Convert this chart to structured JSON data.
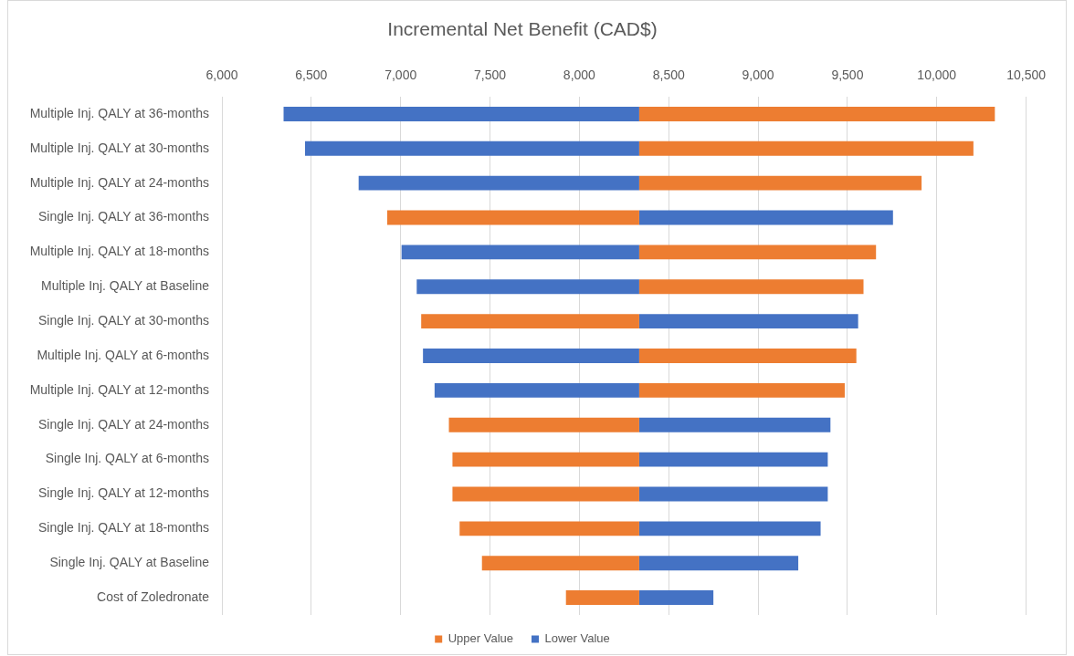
{
  "chart_data": {
    "type": "bar",
    "orientation": "horizontal",
    "title": "Incremental Net Benefit (CAD$)",
    "categories": [
      "Multiple Inj. QALY at 36-months",
      "Multiple Inj. QALY at 30-months",
      "Multiple Inj. QALY at 24-months",
      "Single Inj. QALY at 36-months",
      "Multiple Inj. QALY at 18-months",
      "Multiple Inj. QALY at Baseline",
      "Single Inj. QALY at 30-months",
      "Multiple Inj. QALY at 6-months",
      "Multiple Inj. QALY at 12-months",
      "Single Inj. QALY at 24-months",
      "Single Inj. QALY at 6-months",
      "Single Inj. QALY at 12-months",
      "Single Inj. QALY at 18-months",
      "Single Inj. QALY at Baseline",
      "Cost of Zoledronate"
    ],
    "series": [
      {
        "name": "Upper Value",
        "color": "#ed7d31",
        "base": [
          8335,
          8335,
          8335,
          8335,
          8335,
          8335,
          8335,
          8335,
          8335,
          8335,
          8335,
          8335,
          8335,
          8335,
          8335
        ],
        "values": [
          1990,
          1870,
          1580,
          -1410,
          1325,
          1255,
          -1220,
          1215,
          1150,
          -1065,
          -1045,
          -1045,
          -1005,
          -880,
          -410
        ]
      },
      {
        "name": "Lower Value",
        "color": "#4472c4",
        "base": [
          8335,
          8335,
          8335,
          8335,
          8335,
          8335,
          8335,
          8335,
          8335,
          8335,
          8335,
          8335,
          8335,
          8335,
          8335
        ],
        "values": [
          -1990,
          -1870,
          -1570,
          1420,
          -1330,
          -1245,
          1225,
          -1210,
          -1145,
          1070,
          1055,
          1055,
          1015,
          890,
          415
        ]
      }
    ],
    "xlim": [
      6000,
      10500
    ],
    "xticks": [
      {
        "value": 6000,
        "label": "6,000"
      },
      {
        "value": 6500,
        "label": "6,500"
      },
      {
        "value": 7000,
        "label": "7,000"
      },
      {
        "value": 7500,
        "label": "7,500"
      },
      {
        "value": 8000,
        "label": "8,000"
      },
      {
        "value": 8500,
        "label": "8,500"
      },
      {
        "value": 9000,
        "label": "9,000"
      },
      {
        "value": 9500,
        "label": "9,500"
      },
      {
        "value": 10000,
        "label": "10,000"
      },
      {
        "value": 10500,
        "label": "10,500"
      }
    ],
    "grid": "x",
    "legend": "bottom"
  }
}
